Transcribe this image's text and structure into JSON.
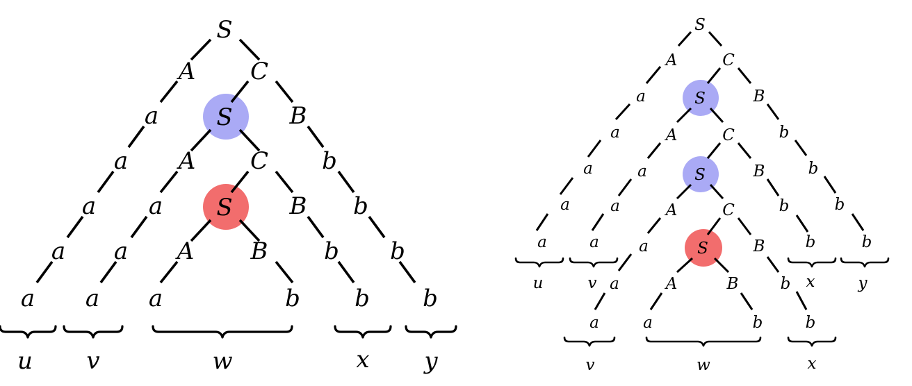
{
  "diagrams": [
    {
      "nodes": {
        "root": "S",
        "n1": "A",
        "n2": "C",
        "n3": "a",
        "n4": "S",
        "n5": "B",
        "n6": "a",
        "n7": "A",
        "n8": "C",
        "n9": "b",
        "n10": "a",
        "n11": "a",
        "n12": "S",
        "n13": "B",
        "n14": "b",
        "n15": "a",
        "n16": "a",
        "n17": "A",
        "n18": "B",
        "n19": "b",
        "n20": "b",
        "n21": "a",
        "n22": "a",
        "n23": "a",
        "n24": "b",
        "n25": "b",
        "n26": "b"
      },
      "highlights": {
        "n4": "#aaaaf5",
        "n12": "#f26d6d"
      },
      "braces": {
        "u": "u",
        "v": "v",
        "w": "w",
        "x": "x",
        "y": "y"
      }
    },
    {
      "nodes": {
        "root": "S",
        "n1": "A",
        "n2": "C",
        "n3": "a",
        "n4": "S",
        "n5": "B",
        "n6": "a",
        "n7": "A",
        "n8": "C",
        "n9": "b",
        "n10": "a",
        "n11": "a",
        "n12": "S",
        "n13": "B",
        "n14": "b",
        "n15": "a",
        "n16": "a",
        "n17": "A",
        "n18": "C",
        "n19": "b",
        "n20": "b",
        "n21": "a",
        "n22": "a",
        "n23": "a",
        "n24": "S",
        "n25": "B",
        "n26": "b",
        "n27": "b",
        "n28": "a",
        "n29": "A",
        "n30": "B",
        "n31": "b",
        "n32": "a",
        "n33": "a",
        "n34": "b",
        "n35": "b"
      },
      "highlights": {
        "n4": "#aaaaf5",
        "n12": "#aaaaf5",
        "n24": "#f26d6d"
      },
      "braces": {
        "u": "u",
        "v_top": "v",
        "x_top": "x",
        "y": "y",
        "v_bottom": "v",
        "w": "w",
        "x_bottom": "x"
      }
    }
  ]
}
